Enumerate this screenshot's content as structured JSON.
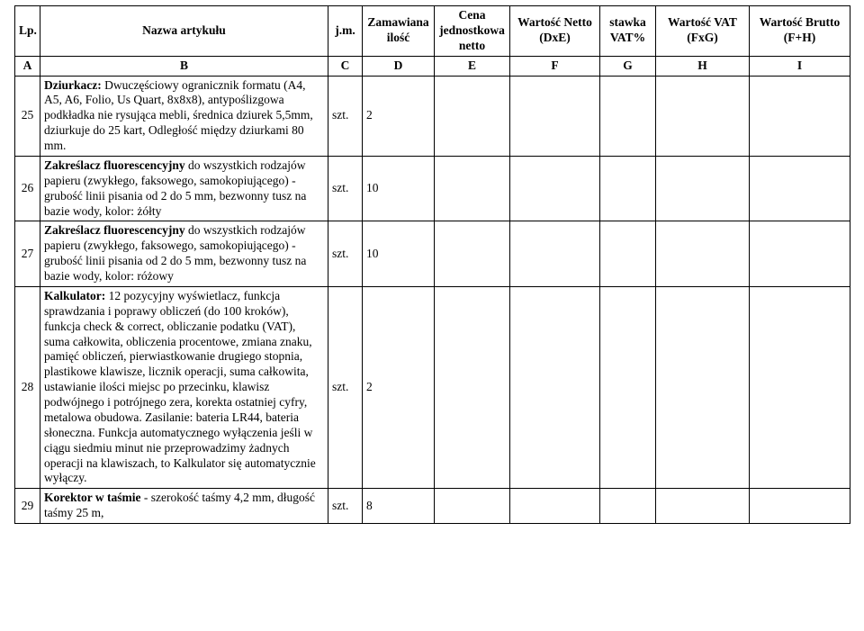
{
  "header": {
    "lp": "Lp.",
    "nazwa": "Nazwa artykułu",
    "jm": "j.m.",
    "zam": "Zamawiana ilość",
    "cena": "Cena jednostkowa netto",
    "netto": "Wartość Netto (DxE)",
    "vatp": "stawka VAT%",
    "vat": "Wartość VAT (FxG)",
    "brutto": "Wartość Brutto (F+H)"
  },
  "letters": {
    "A": "A",
    "B": "B",
    "C": "C",
    "D": "D",
    "E": "E",
    "F": "F",
    "G": "G",
    "H": "H",
    "I": "I"
  },
  "rows": [
    {
      "lp": "25",
      "desc_lead": "Dziurkacz:",
      "desc_rest": " Dwuczęściowy ogranicznik formatu (A4, A5, A6, Folio, Us Quart, 8x8x8), antypoślizgowa podkładka nie rysująca mebli, średnica dziurek 5,5mm, dziurkuje do 25 kart, Odległość między dziurkami 80 mm.",
      "jm": "szt.",
      "qty": "2"
    },
    {
      "lp": "26",
      "desc_lead": "Zakreślacz fluorescencyjny",
      "desc_rest": " do wszystkich rodzajów papieru (zwykłego, faksowego, samokopiującego) - grubość linii pisania od 2 do 5 mm, bezwonny tusz na bazie wody, kolor: żółty",
      "jm": "szt.",
      "qty": "10"
    },
    {
      "lp": "27",
      "desc_lead": "Zakreślacz fluorescencyjny",
      "desc_rest": " do wszystkich rodzajów papieru (zwykłego, faksowego, samokopiującego) - grubość linii pisania od 2 do 5 mm, bezwonny tusz na bazie wody, kolor: różowy",
      "jm": "szt.",
      "qty": "10"
    },
    {
      "lp": "28",
      "desc_lead": "Kalkulator:",
      "desc_rest": " 12 pozycyjny wyświetlacz, funkcja sprawdzania i poprawy obliczeń (do 100 kroków), funkcja check & correct, obliczanie podatku (VAT), suma całkowita, obliczenia procentowe, zmiana znaku, pamięć obliczeń, pierwiastkowanie drugiego stopnia, plastikowe klawisze, licznik operacji, suma całkowita, ustawianie ilości miejsc po przecinku, klawisz podwójnego i potrójnego zera, korekta ostatniej cyfry, metalowa obudowa. Zasilanie: bateria LR44, bateria słoneczna. Funkcja automatycznego wyłączenia jeśli w ciągu siedmiu minut nie przeprowadzimy żadnych operacji na klawiszach, to Kalkulator się automatycznie wyłączy.",
      "jm": "szt.",
      "qty": "2"
    },
    {
      "lp": "29",
      "desc_lead": "Korektor w taśmie",
      "desc_rest": " - szerokość taśmy 4,2 mm, długość taśmy 25 m,",
      "jm": "szt.",
      "qty": "8"
    }
  ],
  "style": {
    "font_family": "Times New Roman",
    "font_size_pt": 10,
    "border_color": "#000000",
    "background_color": "#ffffff",
    "text_color": "#000000"
  }
}
